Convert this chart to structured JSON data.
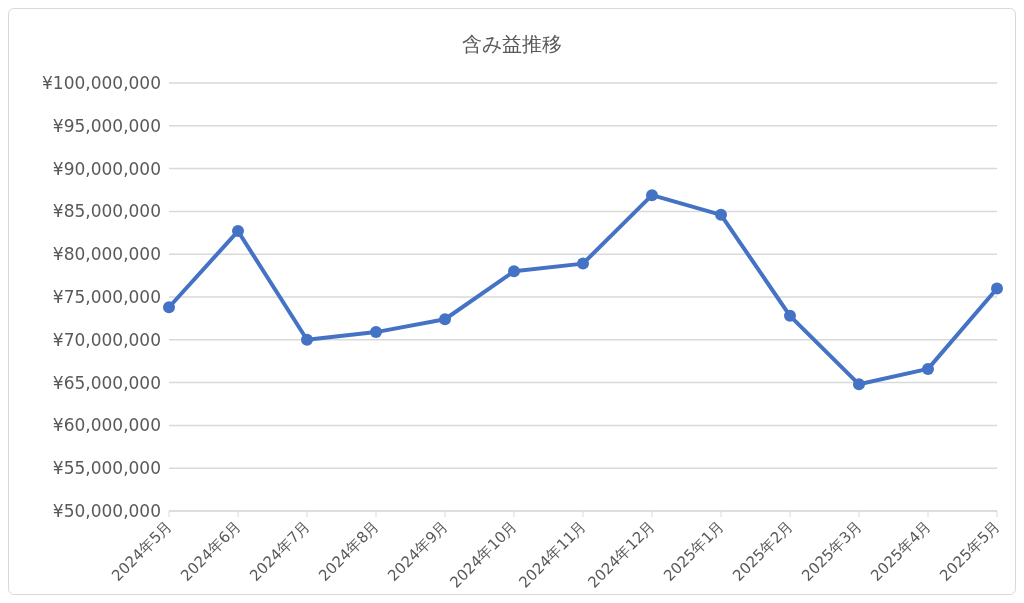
{
  "chart_data": {
    "type": "line",
    "title": "含み益推移",
    "categories": [
      "2024年5月",
      "2024年6月",
      "2024年7月",
      "2024年8月",
      "2024年9月",
      "2024年10月",
      "2024年11月",
      "2024年12月",
      "2025年1月",
      "2025年2月",
      "2025年3月",
      "2025年4月",
      "2025年5月"
    ],
    "series": [
      {
        "color": "#4472c4",
        "values": [
          73800000,
          82700000,
          70000000,
          70900000,
          72400000,
          78000000,
          78900000,
          86900000,
          84600000,
          72800000,
          64800000,
          66600000,
          76000000
        ]
      }
    ],
    "ylim": [
      50000000,
      100000000
    ],
    "yticks": [
      {
        "value": 50000000,
        "label": "¥50,000,000"
      },
      {
        "value": 55000000,
        "label": "¥55,000,000"
      },
      {
        "value": 60000000,
        "label": "¥60,000,000"
      },
      {
        "value": 65000000,
        "label": "¥65,000,000"
      },
      {
        "value": 70000000,
        "label": "¥70,000,000"
      },
      {
        "value": 75000000,
        "label": "¥75,000,000"
      },
      {
        "value": 80000000,
        "label": "¥80,000,000"
      },
      {
        "value": 85000000,
        "label": "¥85,000,000"
      },
      {
        "value": 90000000,
        "label": "¥90,000,000"
      },
      {
        "value": 95000000,
        "label": "¥95,000,000"
      },
      {
        "value": 100000000,
        "label": "¥100,000,000"
      }
    ],
    "grid": "y",
    "marker": "circle",
    "line_style": "solid",
    "legend": false
  }
}
